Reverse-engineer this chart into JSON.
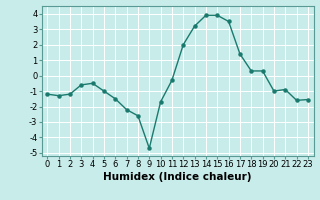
{
  "x": [
    0,
    1,
    2,
    3,
    4,
    5,
    6,
    7,
    8,
    9,
    10,
    11,
    12,
    13,
    14,
    15,
    16,
    17,
    18,
    19,
    20,
    21,
    22,
    23
  ],
  "y": [
    -1.2,
    -1.3,
    -1.2,
    -0.6,
    -0.5,
    -1.0,
    -1.5,
    -2.2,
    -2.6,
    -4.7,
    -1.7,
    -0.3,
    2.0,
    3.2,
    3.9,
    3.9,
    3.5,
    1.4,
    0.3,
    0.3,
    -1.0,
    -0.9,
    -1.6,
    -1.55
  ],
  "line_color": "#1a7a6e",
  "marker": "o",
  "marker_size": 2.2,
  "background_color": "#c8ecea",
  "grid_color": "#ffffff",
  "xlabel": "Humidex (Indice chaleur)",
  "ylabel": "",
  "title": "",
  "xlim": [
    -0.5,
    23.5
  ],
  "ylim": [
    -5.2,
    4.5
  ],
  "yticks": [
    -5,
    -4,
    -3,
    -2,
    -1,
    0,
    1,
    2,
    3,
    4
  ],
  "xticks": [
    0,
    1,
    2,
    3,
    4,
    5,
    6,
    7,
    8,
    9,
    10,
    11,
    12,
    13,
    14,
    15,
    16,
    17,
    18,
    19,
    20,
    21,
    22,
    23
  ],
  "tick_fontsize": 6,
  "xlabel_fontsize": 7.5,
  "line_width": 1.0
}
